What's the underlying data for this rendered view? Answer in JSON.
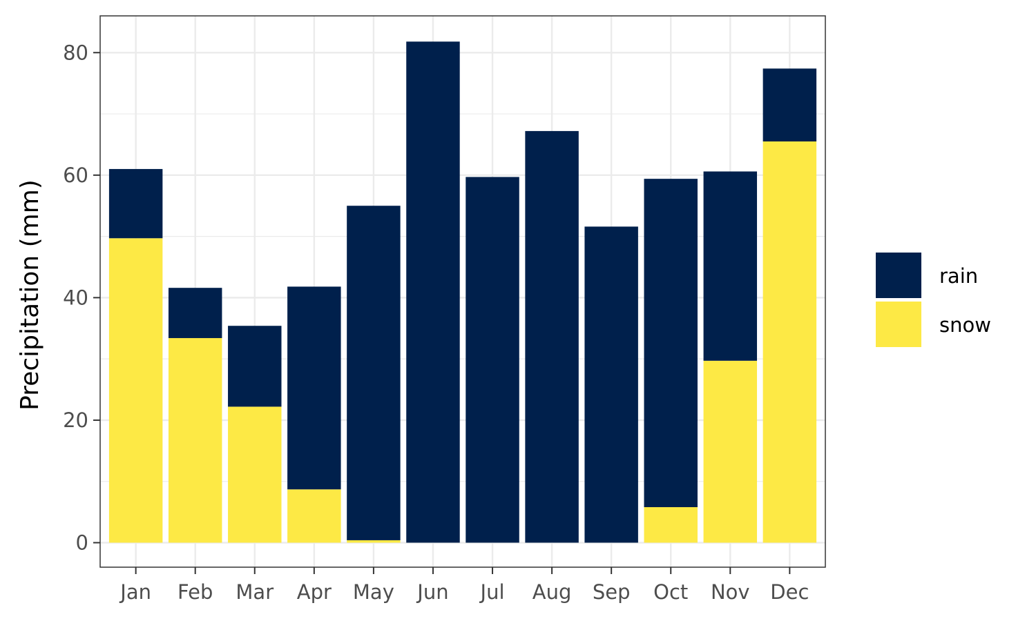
{
  "chart_data": {
    "type": "bar",
    "stacked": true,
    "title": "",
    "xlabel": "",
    "ylabel": "Precipitation (mm)",
    "ylim": [
      -4,
      86
    ],
    "y_ticks": [
      0,
      20,
      40,
      60,
      80
    ],
    "y_tick_labels": [
      "0",
      "20",
      "40",
      "60",
      "80"
    ],
    "grid": true,
    "legend_position": "right",
    "categories": [
      "Jan",
      "Feb",
      "Mar",
      "Apr",
      "May",
      "Jun",
      "Jul",
      "Aug",
      "Sep",
      "Oct",
      "Nov",
      "Dec"
    ],
    "series": [
      {
        "name": "snow",
        "color": "#FDE945",
        "values": [
          49.7,
          33.4,
          22.2,
          8.7,
          0.4,
          0,
          0,
          0,
          0,
          5.8,
          29.7,
          65.5
        ]
      },
      {
        "name": "rain",
        "color": "#00204C",
        "values": [
          11.3,
          8.2,
          13.2,
          33.1,
          54.6,
          81.8,
          59.7,
          67.2,
          51.6,
          53.6,
          30.9,
          11.9
        ]
      }
    ],
    "legend": [
      "rain",
      "snow"
    ]
  }
}
